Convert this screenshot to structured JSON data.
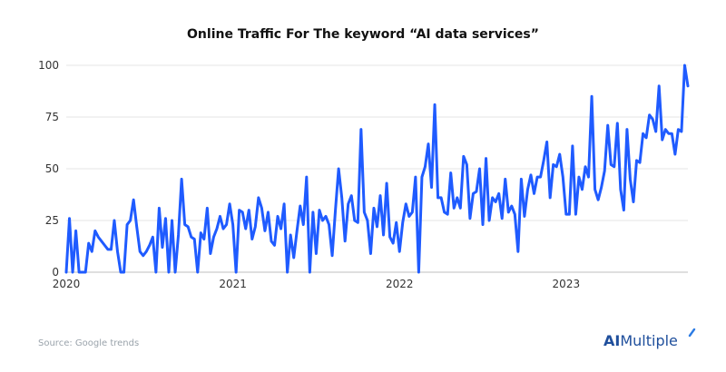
{
  "chart_data": {
    "type": "line",
    "title": "Online Traffic For The keyword “AI data services”",
    "xlabel": "",
    "ylabel": "",
    "ylim": [
      0,
      100
    ],
    "yticks": [
      0,
      25,
      50,
      75,
      100
    ],
    "ytick_labels": [
      "0",
      "25",
      "50",
      "75",
      "100"
    ],
    "xticks": [
      {
        "label": "2020",
        "week": 0
      },
      {
        "label": "2021",
        "week": 52
      },
      {
        "label": "2022",
        "week": 104
      },
      {
        "label": "2023",
        "week": 156
      }
    ],
    "grid": true,
    "series": [
      {
        "name": "AI data services",
        "color": "#1f5bff",
        "values": [
          0,
          26,
          0,
          20,
          0,
          0,
          0,
          14,
          10,
          20,
          17,
          15,
          13,
          11,
          11,
          25,
          10,
          0,
          0,
          23,
          25,
          35,
          22,
          10,
          8,
          10,
          13,
          17,
          0,
          31,
          12,
          26,
          0,
          25,
          0,
          18,
          45,
          23,
          22,
          17,
          16,
          0,
          19,
          16,
          31,
          9,
          17,
          21,
          27,
          21,
          23,
          33,
          23,
          0,
          30,
          29,
          21,
          30,
          16,
          22,
          36,
          31,
          20,
          29,
          15,
          13,
          27,
          21,
          33,
          0,
          18,
          7,
          20,
          32,
          23,
          46,
          0,
          29,
          9,
          30,
          25,
          27,
          23,
          8,
          30,
          50,
          36,
          15,
          33,
          37,
          25,
          24,
          69,
          29,
          25,
          9,
          31,
          22,
          37,
          18,
          43,
          17,
          14,
          24,
          10,
          24,
          33,
          27,
          29,
          46,
          0,
          46,
          51,
          62,
          41,
          81,
          36,
          36,
          29,
          28,
          48,
          31,
          36,
          31,
          56,
          52,
          26,
          38,
          39,
          50,
          23,
          55,
          25,
          36,
          34,
          38,
          26,
          45,
          29,
          32,
          28,
          10,
          45,
          27,
          40,
          47,
          38,
          46,
          46,
          54,
          63,
          36,
          52,
          51,
          57,
          46,
          28,
          28,
          61,
          28,
          46,
          40,
          51,
          46,
          85,
          40,
          35,
          41,
          49,
          71,
          52,
          51,
          72,
          40,
          30,
          69,
          45,
          34,
          54,
          53,
          67,
          65,
          76,
          74,
          68,
          90,
          64,
          69,
          67,
          67,
          57,
          69,
          68,
          100,
          90
        ]
      }
    ]
  },
  "footer": {
    "source": "Source: Google trends",
    "brand_ai": "AI",
    "brand_rest": "Multiple"
  }
}
